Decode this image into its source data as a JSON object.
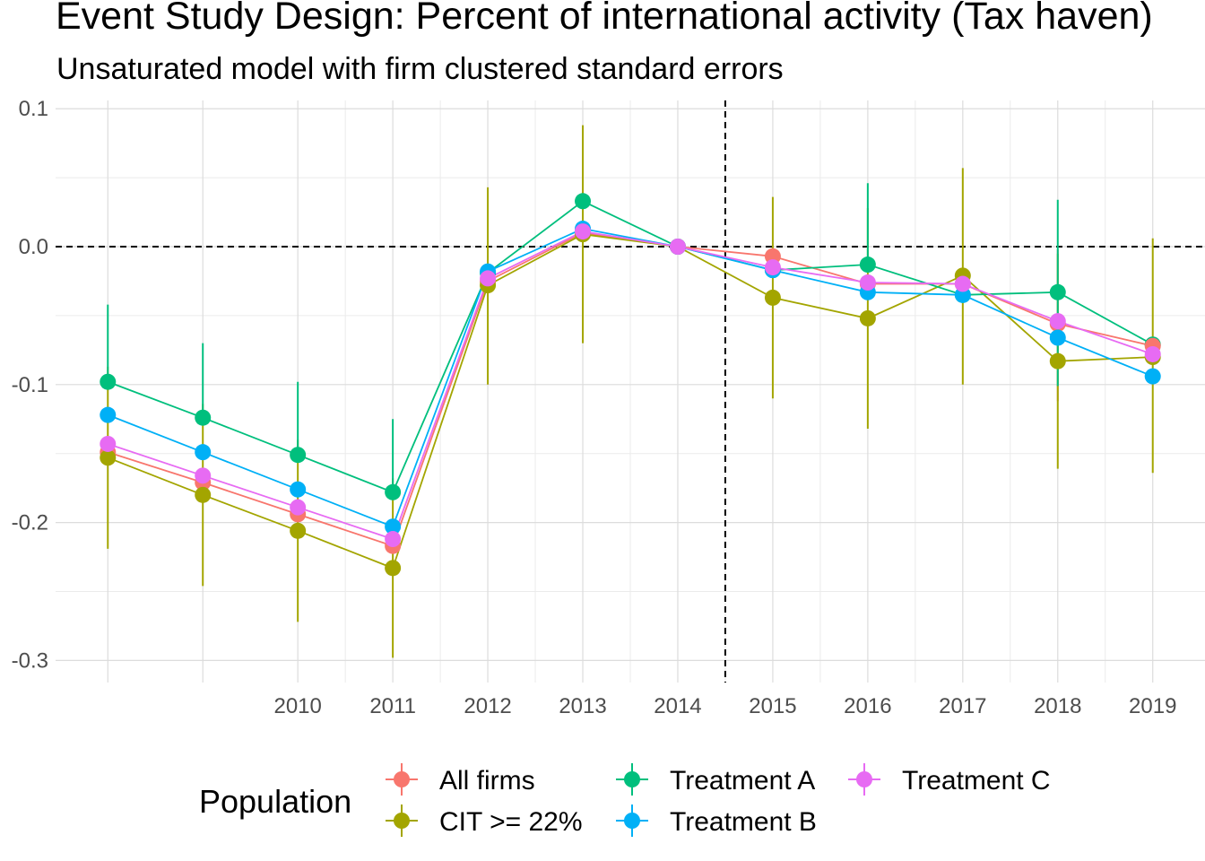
{
  "title": "Event Study Design: Percent of international  activity (Tax haven)",
  "subtitle": "Unsaturated model with firm clustered standard errors",
  "chart_data": {
    "type": "line",
    "x": [
      2008,
      2009,
      2010,
      2011,
      2012,
      2013,
      2014,
      2015,
      2016,
      2017,
      2018,
      2019
    ],
    "x_tick_labels": [
      "2010",
      "2011",
      "2012",
      "2013",
      "2014",
      "2015",
      "2016",
      "2017",
      "2018",
      "2019"
    ],
    "x_tick_values": [
      2010,
      2011,
      2012,
      2013,
      2014,
      2015,
      2016,
      2017,
      2018,
      2019
    ],
    "xlim": [
      2007.45,
      2019.55
    ],
    "y_tick_labels": [
      "0.1",
      "0.0",
      "-0.1",
      "-0.2",
      "-0.3"
    ],
    "y_tick_values": [
      0.1,
      0.0,
      -0.1,
      -0.2,
      -0.3
    ],
    "ylim": [
      -0.316,
      0.106
    ],
    "reference_lines": {
      "hline_y": 0.0,
      "vline_x": 2014.5,
      "style": "dashed"
    },
    "grid": true,
    "legend": {
      "title": "Population",
      "position": "bottom"
    },
    "series": [
      {
        "name": "All firms",
        "color": "#F8766D",
        "values": [
          -0.149,
          -0.171,
          -0.194,
          -0.217,
          -0.025,
          0.01,
          0.0,
          -0.007,
          -0.027,
          -0.027,
          -0.056,
          -0.072
        ],
        "ci_low": [
          null,
          null,
          null,
          null,
          null,
          null,
          null,
          null,
          null,
          null,
          -0.112,
          null
        ],
        "ci_high": [
          null,
          null,
          null,
          null,
          null,
          null,
          null,
          null,
          null,
          null,
          -0.002,
          null
        ]
      },
      {
        "name": "CIT >= 22%",
        "color": "#A3A500",
        "values": [
          -0.153,
          -0.18,
          -0.206,
          -0.233,
          -0.028,
          0.009,
          0.0,
          -0.037,
          -0.052,
          -0.021,
          -0.083,
          -0.08
        ],
        "ci_low": [
          -0.219,
          -0.246,
          -0.272,
          -0.298,
          -0.1,
          -0.07,
          null,
          -0.11,
          -0.132,
          -0.1,
          -0.161,
          -0.164
        ],
        "ci_high": [
          -0.087,
          -0.114,
          -0.14,
          -0.168,
          0.043,
          0.088,
          null,
          0.036,
          0.028,
          0.057,
          -0.005,
          0.006
        ]
      },
      {
        "name": "Treatment A",
        "color": "#00BF7D",
        "values": [
          -0.098,
          -0.124,
          -0.151,
          -0.178,
          -0.019,
          0.033,
          0.0,
          -0.017,
          -0.013,
          -0.035,
          -0.033,
          -0.071
        ],
        "ci_low": [
          null,
          null,
          null,
          null,
          null,
          null,
          null,
          null,
          null,
          null,
          -0.101,
          null
        ],
        "ci_high": [
          -0.042,
          -0.07,
          -0.098,
          -0.125,
          null,
          null,
          null,
          null,
          0.046,
          null,
          0.034,
          null
        ]
      },
      {
        "name": "Treatment B",
        "color": "#00B0F6",
        "values": [
          -0.122,
          -0.149,
          -0.176,
          -0.203,
          -0.018,
          0.013,
          0.0,
          -0.017,
          -0.033,
          -0.035,
          -0.066,
          -0.094
        ],
        "ci_low": [
          null,
          null,
          null,
          null,
          null,
          null,
          null,
          null,
          null,
          null,
          null,
          null
        ],
        "ci_high": [
          null,
          null,
          null,
          null,
          null,
          null,
          null,
          null,
          null,
          null,
          null,
          null
        ]
      },
      {
        "name": "Treatment C",
        "color": "#E76BF3",
        "values": [
          -0.143,
          -0.166,
          -0.189,
          -0.212,
          -0.023,
          0.011,
          0.0,
          -0.015,
          -0.026,
          -0.027,
          -0.054,
          -0.078
        ],
        "ci_low": [
          null,
          null,
          null,
          null,
          null,
          null,
          null,
          null,
          null,
          null,
          null,
          null
        ],
        "ci_high": [
          null,
          null,
          null,
          null,
          null,
          null,
          null,
          null,
          null,
          null,
          null,
          null
        ]
      }
    ],
    "legend_order": [
      0,
      1,
      2,
      3,
      4
    ]
  }
}
